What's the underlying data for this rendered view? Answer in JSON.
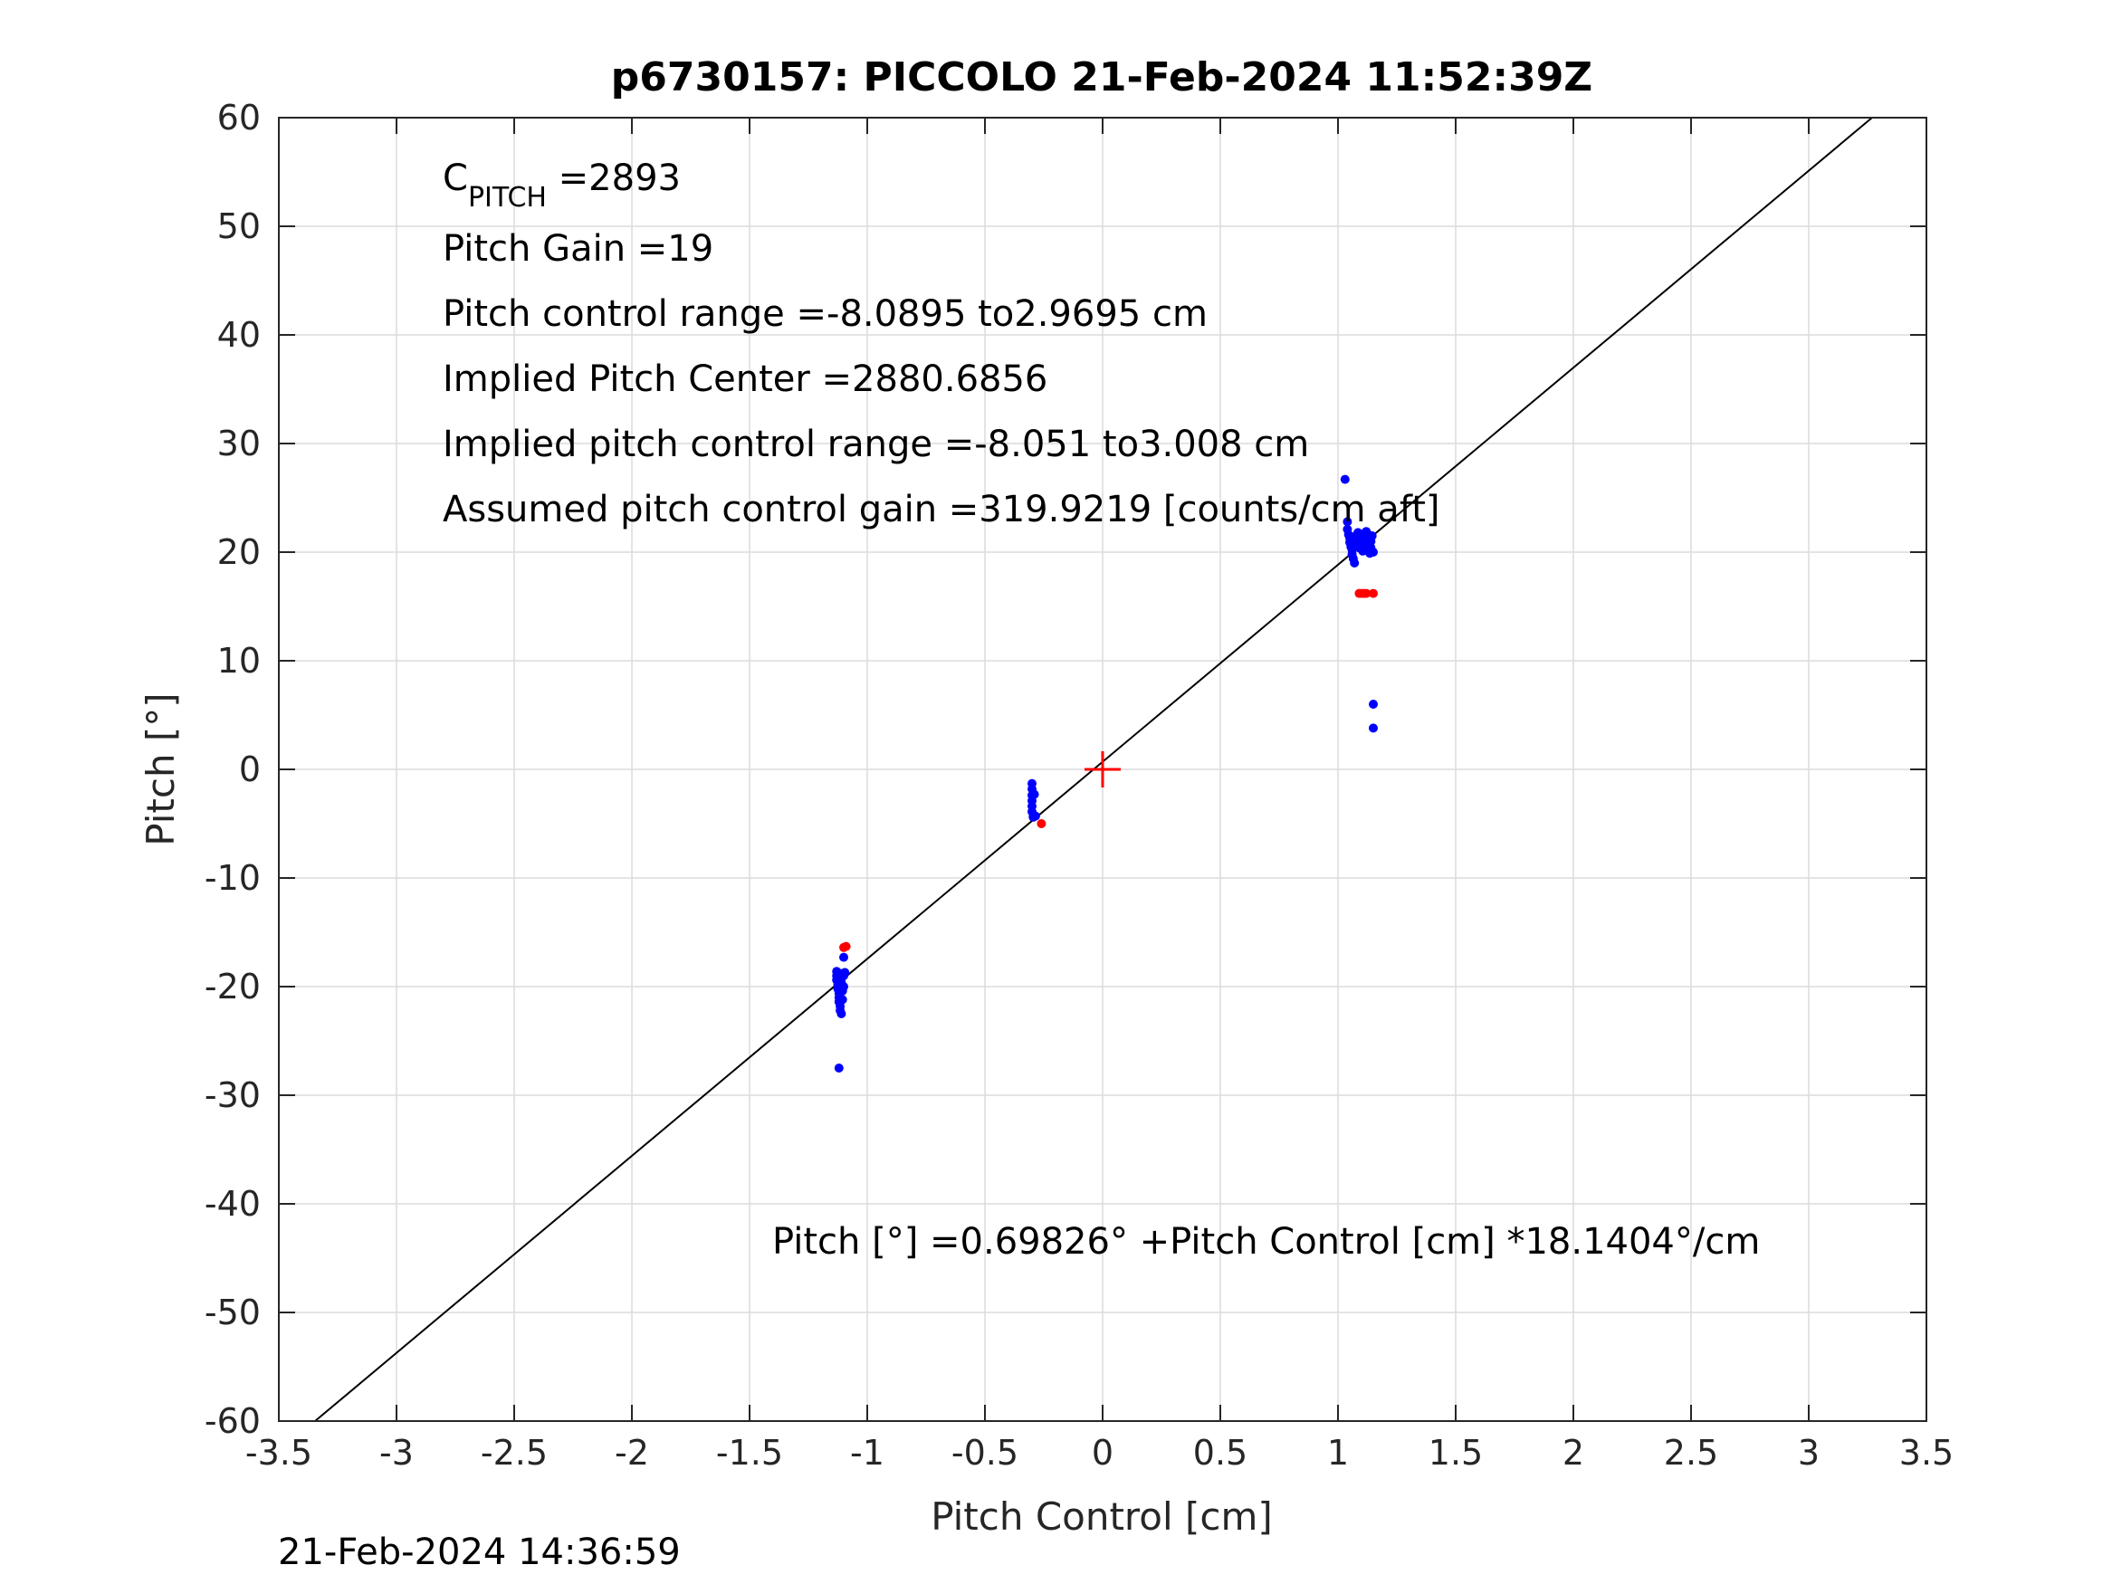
{
  "chart_data": {
    "type": "scatter",
    "title": "p6730157: PICCOLO 21-Feb-2024 11:52:39Z",
    "xlabel": "Pitch Control [cm]",
    "ylabel": "Pitch [°]",
    "xlim": [
      -3.5,
      3.5
    ],
    "ylim": [
      -60,
      60
    ],
    "xticks": [
      -3.5,
      -3,
      -2.5,
      -2,
      -1.5,
      -1,
      -0.5,
      0,
      0.5,
      1,
      1.5,
      2,
      2.5,
      3,
      3.5
    ],
    "xtick_labels": [
      "-3.5",
      "-3",
      "-2.5",
      "-2",
      "-1.5",
      "-1",
      "-0.5",
      "0",
      "0.5",
      "1",
      "1.5",
      "2",
      "2.5",
      "3",
      "3.5"
    ],
    "yticks": [
      -60,
      -50,
      -40,
      -30,
      -20,
      -10,
      0,
      10,
      20,
      30,
      40,
      50,
      60
    ],
    "ytick_labels": [
      "-60",
      "-50",
      "-40",
      "-30",
      "-20",
      "-10",
      "0",
      "10",
      "20",
      "30",
      "40",
      "50",
      "60"
    ],
    "grid": true,
    "annotations": {
      "cpitch_main": "C",
      "cpitch_sub": "PITCH",
      "cpitch_value": " =2893",
      "pitch_gain": "Pitch Gain =19",
      "control_range": "Pitch control range =-8.0895 to2.9695 cm",
      "implied_center": "Implied Pitch Center =2880.6856",
      "implied_range": "Implied pitch control range =-8.051 to3.008 cm",
      "assumed_gain": "Assumed pitch control gain =319.9219 [counts/cm aft]",
      "fit_equation": "Pitch [°] =0.69826° +Pitch Control [cm] *18.1404°/cm"
    },
    "timestamp": "21-Feb-2024 14:36:59",
    "fit_line": {
      "intercept": 0.69826,
      "slope": 18.1404,
      "color": "#000000"
    },
    "center_marker": {
      "x": 0,
      "y": 0,
      "color": "#ff0000"
    },
    "series": [
      {
        "color": "#0000ff",
        "points": [
          [
            1.03,
            26.7
          ],
          [
            1.04,
            22.8
          ],
          [
            1.04,
            22.1
          ],
          [
            1.045,
            21.6
          ],
          [
            1.05,
            21.3
          ],
          [
            1.05,
            20.9
          ],
          [
            1.055,
            20.5
          ],
          [
            1.06,
            20.2
          ],
          [
            1.06,
            19.8
          ],
          [
            1.065,
            19.4
          ],
          [
            1.07,
            19.0
          ],
          [
            1.07,
            21.0
          ],
          [
            1.075,
            21.5
          ],
          [
            1.08,
            20.7
          ],
          [
            1.085,
            21.8
          ],
          [
            1.09,
            20.4
          ],
          [
            1.095,
            21.1
          ],
          [
            1.1,
            20.8
          ],
          [
            1.1,
            21.4
          ],
          [
            1.105,
            20.1
          ],
          [
            1.11,
            21.7
          ],
          [
            1.115,
            20.9
          ],
          [
            1.12,
            21.9
          ],
          [
            1.12,
            20.3
          ],
          [
            1.125,
            21.2
          ],
          [
            1.13,
            20.6
          ],
          [
            1.13,
            21.6
          ],
          [
            1.135,
            19.9
          ],
          [
            1.14,
            21.0
          ],
          [
            1.14,
            20.4
          ],
          [
            1.145,
            21.5
          ],
          [
            1.15,
            20.0
          ],
          [
            1.15,
            6.0
          ],
          [
            1.15,
            3.8
          ],
          [
            -0.3,
            -1.3
          ],
          [
            -0.3,
            -1.8
          ],
          [
            -0.3,
            -2.4
          ],
          [
            -0.3,
            -2.9
          ],
          [
            -0.3,
            -3.4
          ],
          [
            -0.3,
            -3.9
          ],
          [
            -0.295,
            -4.4
          ],
          [
            -0.29,
            -2.3
          ],
          [
            -0.285,
            -4.3
          ],
          [
            -1.13,
            -18.6
          ],
          [
            -1.13,
            -19.0
          ],
          [
            -1.13,
            -19.4
          ],
          [
            -1.125,
            -19.8
          ],
          [
            -1.125,
            -20.2
          ],
          [
            -1.12,
            -20.6
          ],
          [
            -1.12,
            -21.0
          ],
          [
            -1.12,
            -21.4
          ],
          [
            -1.115,
            -21.8
          ],
          [
            -1.115,
            -22.2
          ],
          [
            -1.11,
            -22.5
          ],
          [
            -1.11,
            -18.8
          ],
          [
            -1.11,
            -19.6
          ],
          [
            -1.105,
            -20.4
          ],
          [
            -1.105,
            -21.2
          ],
          [
            -1.1,
            -19.0
          ],
          [
            -1.1,
            -20.0
          ],
          [
            -1.095,
            -18.7
          ],
          [
            -1.1,
            -17.3
          ],
          [
            -1.12,
            -27.5
          ]
        ]
      },
      {
        "color": "#ff0000",
        "points": [
          [
            1.09,
            16.2
          ],
          [
            1.1,
            16.2
          ],
          [
            1.11,
            16.2
          ],
          [
            1.12,
            16.2
          ],
          [
            1.15,
            16.2
          ],
          [
            -0.26,
            -5.0
          ],
          [
            -1.09,
            -16.3
          ],
          [
            -1.1,
            -16.4
          ]
        ]
      }
    ]
  }
}
